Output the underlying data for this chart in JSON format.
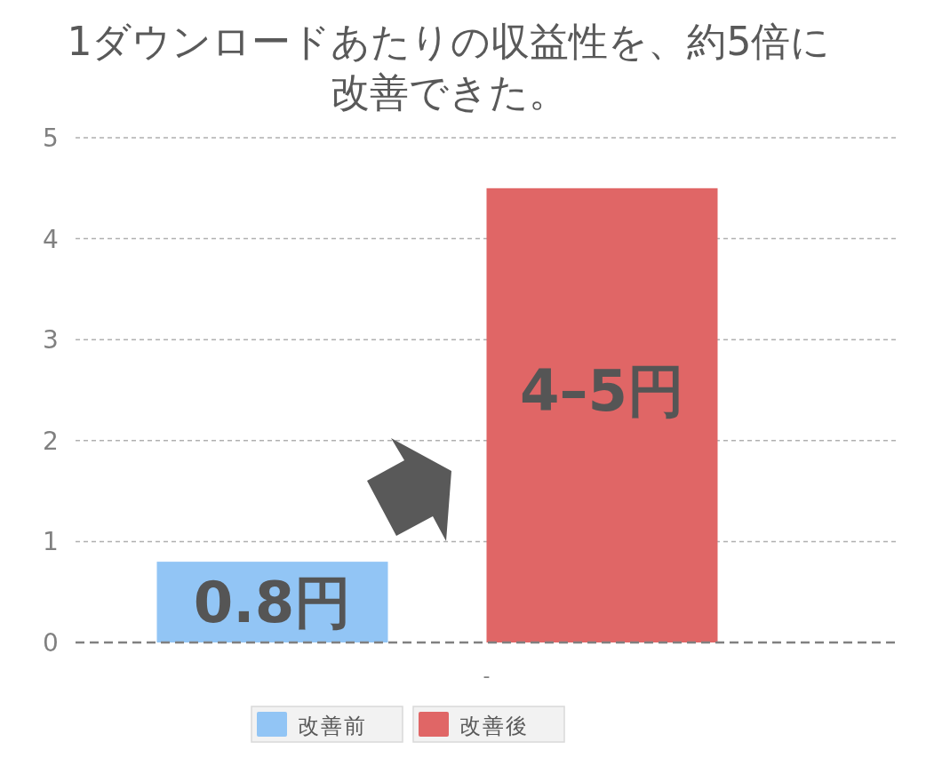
{
  "chart_data": {
    "type": "bar",
    "title": "1ダウンロードあたりの収益性を、約5倍に改善できた。",
    "categories": [
      "-"
    ],
    "series": [
      {
        "name": "改善前",
        "color": "#92c5f5",
        "values": [
          0.8
        ],
        "value_labels": [
          "0.8円"
        ]
      },
      {
        "name": "改善後",
        "color": "#e06666",
        "values": [
          4.5
        ],
        "value_labels": [
          "4–5円"
        ]
      }
    ],
    "ylim": [
      0,
      5
    ],
    "yticks": [
      0,
      1,
      2,
      3,
      4,
      5
    ],
    "grid": "y",
    "legend": "bottom"
  }
}
